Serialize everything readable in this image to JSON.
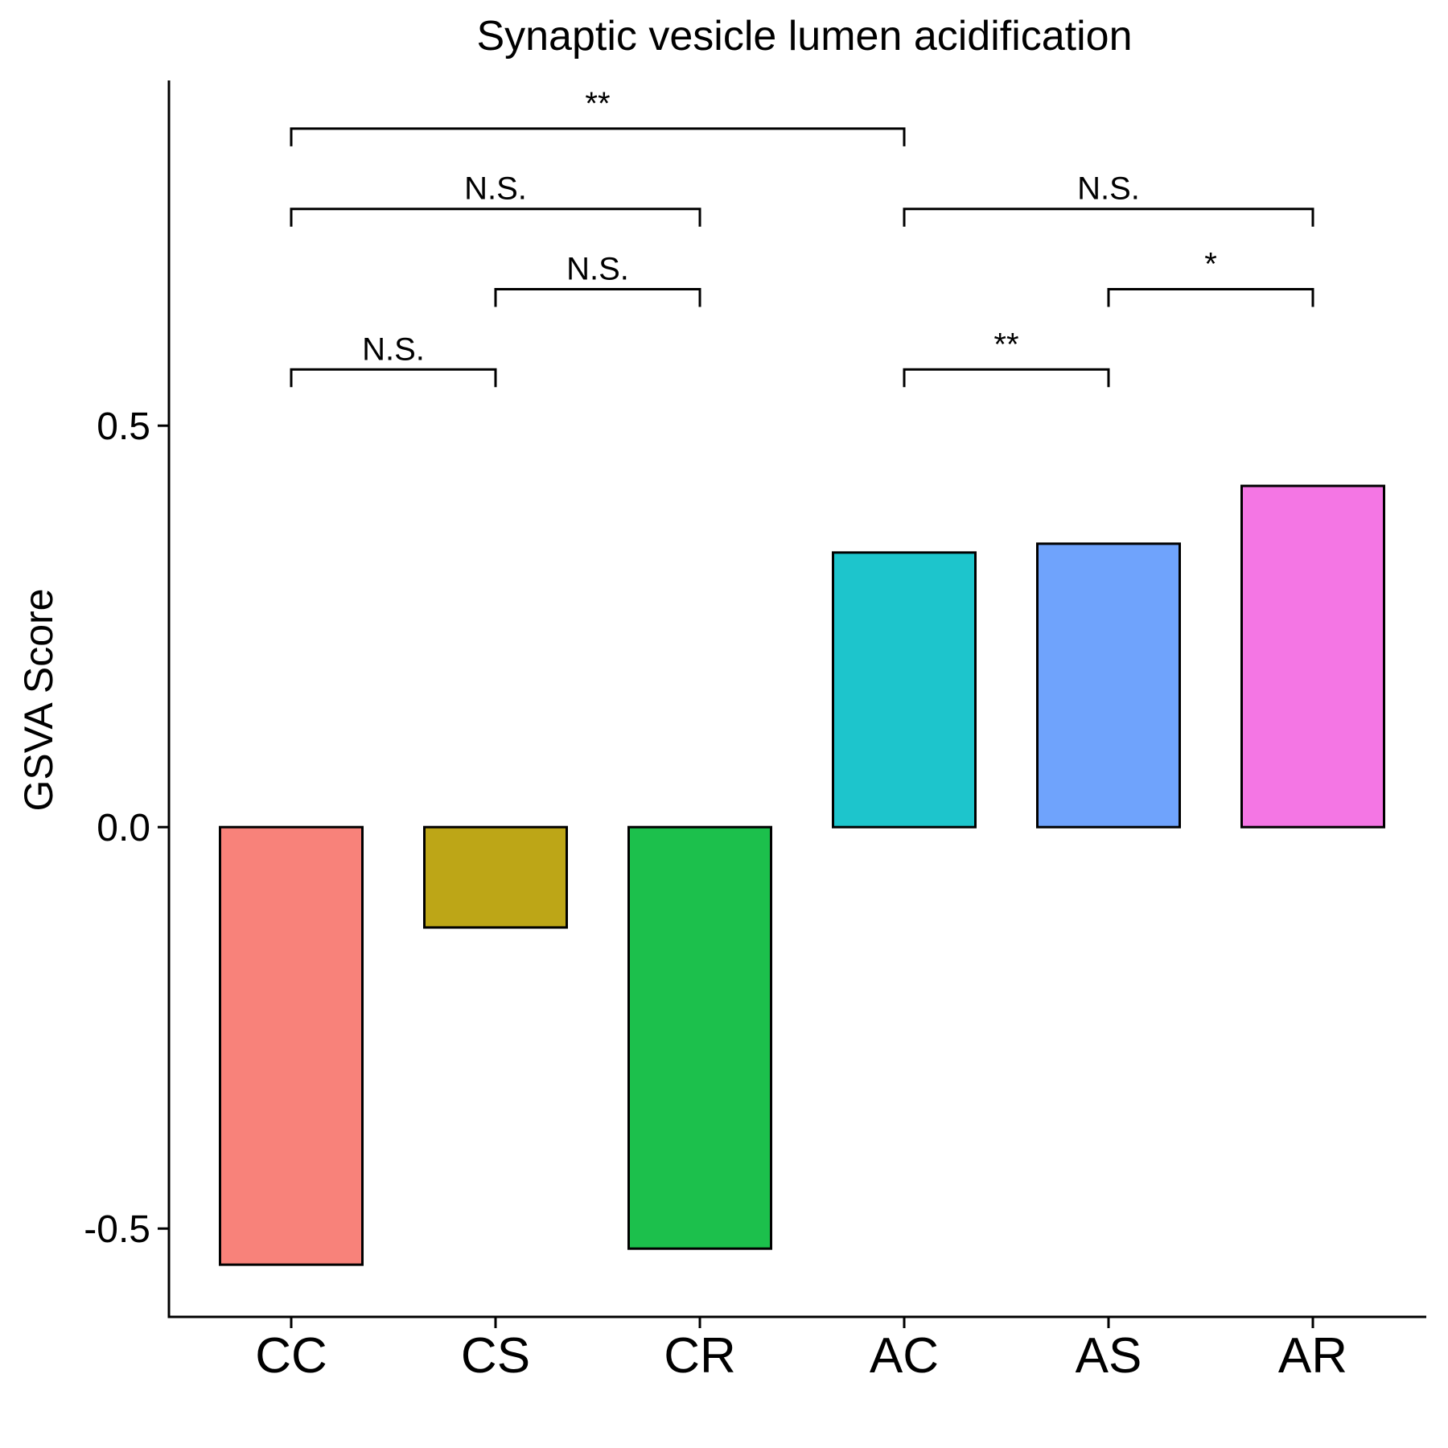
{
  "chart_data": {
    "type": "bar",
    "title": "Synaptic vesicle lumen acidification",
    "xlabel": "",
    "ylabel": "GSVA Score",
    "categories": [
      "CC",
      "CS",
      "CR",
      "AC",
      "AS",
      "AR"
    ],
    "values": [
      -0.545,
      -0.125,
      -0.525,
      0.342,
      0.353,
      0.425
    ],
    "colors": [
      "#F8827A",
      "#BDA617",
      "#1CC04C",
      "#1DC5CC",
      "#6FA3FC",
      "#F476E4"
    ],
    "ylim": [
      -0.61,
      0.93
    ],
    "yticks": [
      -0.5,
      0.0,
      0.5
    ],
    "ytick_labels": [
      "-0.5",
      "0.0",
      "0.5"
    ],
    "grid": false,
    "legend": "none",
    "annotations": [
      {
        "from": "CC",
        "to": "CS",
        "label": "N.S.",
        "y": 0.57
      },
      {
        "from": "CS",
        "to": "CR",
        "label": "N.S.",
        "y": 0.67
      },
      {
        "from": "CC",
        "to": "CR",
        "label": "N.S.",
        "y": 0.77
      },
      {
        "from": "CC",
        "to": "AC",
        "label": "**",
        "y": 0.87
      },
      {
        "from": "AC",
        "to": "AS",
        "label": "**",
        "y": 0.57
      },
      {
        "from": "AS",
        "to": "AR",
        "label": "*",
        "y": 0.67
      },
      {
        "from": "AC",
        "to": "AR",
        "label": "N.S.",
        "y": 0.77
      }
    ]
  }
}
